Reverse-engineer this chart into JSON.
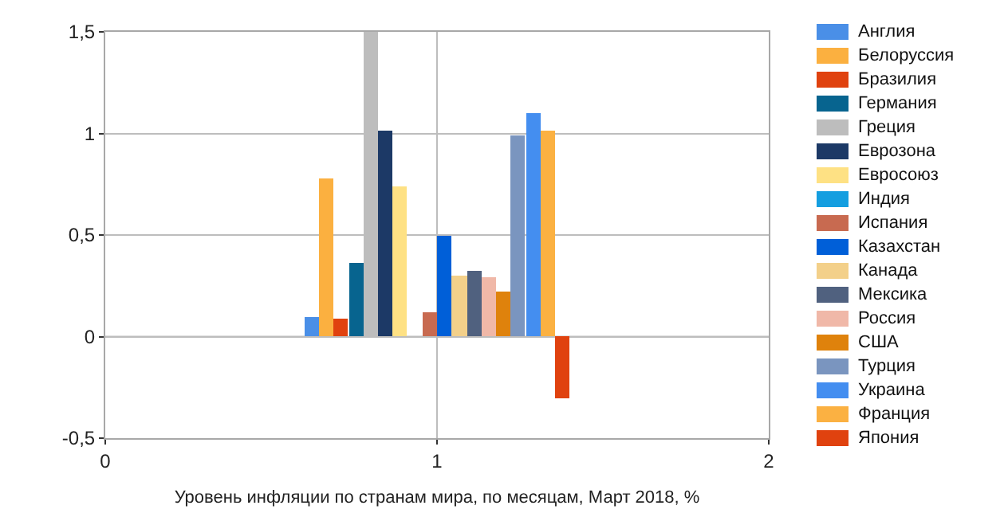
{
  "chart_data": {
    "type": "bar",
    "xlabel": "Уровень инфляции по странам мира, по месяцам, Март 2018, %",
    "series": [
      {
        "name": "Англия",
        "color": "#4a8fe7",
        "x": [
          0.622
        ],
        "values": [
          0.1
        ]
      },
      {
        "name": "Белоруссия",
        "color": "#fbb040",
        "x": [
          0.667
        ],
        "values": [
          0.78
        ]
      },
      {
        "name": "Бразилия",
        "color": "#e0420f",
        "x": [
          0.711
        ],
        "values": [
          0.09
        ]
      },
      {
        "name": "Германия",
        "color": "#07648f",
        "x": [
          0.756
        ],
        "values": [
          0.36
        ]
      },
      {
        "name": "Греция",
        "color": "#bdbdbd",
        "x": [
          0.8
        ],
        "values": [
          1.5
        ]
      },
      {
        "name": "Еврозона",
        "color": "#1c3966",
        "x": [
          0.844
        ],
        "values": [
          1.01
        ]
      },
      {
        "name": "Евросоюз",
        "color": "#fee184",
        "x": [
          0.889
        ],
        "values": [
          0.74
        ]
      },
      {
        "name": "Индия",
        "color": "#149ee0"
      },
      {
        "name": "Испания",
        "color": "#c86a50",
        "x": [
          0.978
        ],
        "values": [
          0.12
        ]
      },
      {
        "name": "Казахстан",
        "color": "#005fd8",
        "x": [
          1.022
        ],
        "values": [
          0.5
        ]
      },
      {
        "name": "Канада",
        "color": "#f3d08a",
        "x": [
          1.067
        ],
        "values": [
          0.3
        ]
      },
      {
        "name": "Мексика",
        "color": "#50617f",
        "x": [
          1.111
        ],
        "values": [
          0.32
        ]
      },
      {
        "name": "Россия",
        "color": "#f0b8a8",
        "x": [
          1.156
        ],
        "values": [
          0.29
        ]
      },
      {
        "name": "США",
        "color": "#df820c",
        "x": [
          1.2
        ],
        "values": [
          0.22
        ]
      },
      {
        "name": "Турция",
        "color": "#7a95bf",
        "x": [
          1.244
        ],
        "values": [
          0.99
        ]
      },
      {
        "name": "Украина",
        "color": "#448ef0",
        "x": [
          1.289
        ],
        "values": [
          1.1
        ]
      },
      {
        "name": "Франция",
        "color": "#fbb142",
        "x": [
          1.333
        ],
        "values": [
          1.01
        ]
      },
      {
        "name": "Япония",
        "color": "#e0420f",
        "x": [
          1.378
        ],
        "values": [
          -0.3
        ]
      }
    ],
    "xlim": [
      0,
      2
    ],
    "xticks": [
      0,
      1,
      2
    ],
    "ylim": [
      -0.5,
      1.5
    ],
    "yticks": [
      {
        "value": -0.5,
        "label": "-0,5"
      },
      0,
      {
        "value": 0.5,
        "label": "0,5"
      },
      1,
      {
        "value": 1.5,
        "label": "1,5"
      }
    ],
    "grid": true,
    "legend": "top right"
  }
}
